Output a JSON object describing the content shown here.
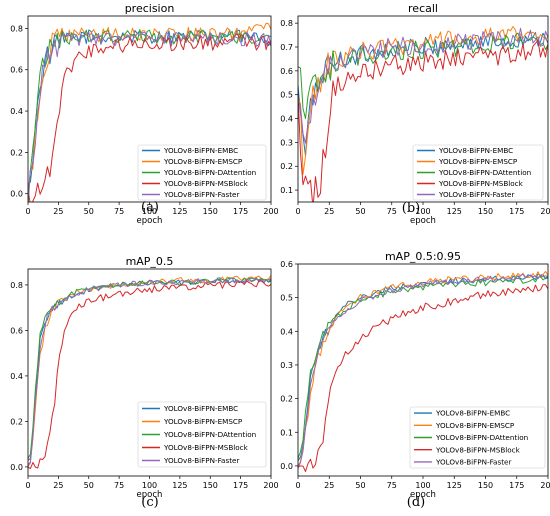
{
  "series_names": [
    "YOLOv8-BiFPN-EMBC",
    "YOLOv8-BiFPN-EMSCP",
    "YOLOv8-BiFPN-DAttention",
    "YOLOv8-BiFPN-MSBlock",
    "YOLOv8-BiFPN-Faster"
  ],
  "series_colors": [
    "#1f77b4",
    "#ff7f0e",
    "#2ca02c",
    "#d62728",
    "#9467bd"
  ],
  "chart_data": [
    {
      "type": "line",
      "title": "precision",
      "xlabel": "epoch",
      "ylabel": "",
      "caption": "(a)",
      "xlim": [
        0,
        200
      ],
      "ylim": [
        -0.04,
        0.86
      ],
      "xticks": [
        0,
        25,
        50,
        75,
        100,
        125,
        150,
        175,
        200
      ],
      "yticks": [
        0.0,
        0.2,
        0.4,
        0.6,
        0.8
      ],
      "ytick_labels": [
        "0.0",
        "0.2",
        "0.4",
        "0.6",
        "0.8"
      ],
      "legend": "lower-right",
      "grid": false,
      "series": [
        {
          "name": "YOLOv8-BiFPN-EMBC",
          "x": [
            0,
            5,
            10,
            15,
            20,
            30,
            40,
            50,
            75,
            100,
            125,
            150,
            175,
            200
          ],
          "y": [
            0.0,
            0.25,
            0.55,
            0.65,
            0.7,
            0.74,
            0.76,
            0.76,
            0.76,
            0.76,
            0.76,
            0.76,
            0.76,
            0.75
          ],
          "noise": 0.035
        },
        {
          "name": "YOLOv8-BiFPN-EMSCP",
          "x": [
            0,
            5,
            10,
            15,
            20,
            30,
            40,
            50,
            75,
            100,
            125,
            150,
            175,
            200
          ],
          "y": [
            0.0,
            0.2,
            0.5,
            0.66,
            0.72,
            0.76,
            0.77,
            0.77,
            0.77,
            0.77,
            0.77,
            0.77,
            0.77,
            0.81
          ],
          "noise": 0.035
        },
        {
          "name": "YOLOv8-BiFPN-DAttention",
          "x": [
            0,
            5,
            10,
            15,
            20,
            30,
            40,
            50,
            75,
            100,
            125,
            150,
            175,
            200
          ],
          "y": [
            0.0,
            0.3,
            0.58,
            0.66,
            0.72,
            0.75,
            0.76,
            0.76,
            0.76,
            0.76,
            0.76,
            0.76,
            0.76,
            0.74
          ],
          "noise": 0.035
        },
        {
          "name": "YOLOv8-BiFPN-MSBlock",
          "x": [
            0,
            5,
            10,
            15,
            20,
            25,
            30,
            35,
            40,
            50,
            60,
            75,
            100,
            125,
            150,
            175,
            200
          ],
          "y": [
            0.0,
            0.02,
            0.03,
            0.05,
            0.2,
            0.4,
            0.55,
            0.62,
            0.66,
            0.69,
            0.71,
            0.72,
            0.73,
            0.73,
            0.73,
            0.74,
            0.72
          ],
          "noise": 0.04
        },
        {
          "name": "YOLOv8-BiFPN-Faster",
          "x": [
            0,
            5,
            10,
            15,
            20,
            30,
            40,
            50,
            75,
            100,
            125,
            150,
            175,
            200
          ],
          "y": [
            0.0,
            0.22,
            0.52,
            0.64,
            0.71,
            0.74,
            0.75,
            0.75,
            0.75,
            0.75,
            0.75,
            0.75,
            0.75,
            0.74
          ],
          "noise": 0.035
        }
      ]
    },
    {
      "type": "line",
      "title": "recall",
      "xlabel": "epoch",
      "ylabel": "",
      "caption": "(b)",
      "xlim": [
        0,
        200
      ],
      "ylim": [
        0.05,
        0.83
      ],
      "xticks": [
        0,
        25,
        50,
        75,
        100,
        125,
        150,
        175,
        200
      ],
      "yticks": [
        0.1,
        0.2,
        0.3,
        0.4,
        0.5,
        0.6,
        0.7,
        0.8
      ],
      "ytick_labels": [
        "0.1",
        "0.2",
        "0.3",
        "0.4",
        "0.5",
        "0.6",
        "0.7",
        "0.8"
      ],
      "legend": "lower-right",
      "grid": false,
      "series": [
        {
          "name": "YOLOv8-BiFPN-EMBC",
          "x": [
            0,
            2,
            5,
            8,
            12,
            20,
            30,
            50,
            75,
            100,
            125,
            150,
            175,
            200
          ],
          "y": [
            0.5,
            0.45,
            0.2,
            0.35,
            0.5,
            0.6,
            0.64,
            0.67,
            0.69,
            0.7,
            0.71,
            0.72,
            0.73,
            0.75
          ],
          "noise": 0.04
        },
        {
          "name": "YOLOv8-BiFPN-EMSCP",
          "x": [
            0,
            2,
            5,
            8,
            12,
            20,
            30,
            50,
            75,
            100,
            125,
            150,
            175,
            200
          ],
          "y": [
            0.5,
            0.4,
            0.15,
            0.3,
            0.5,
            0.6,
            0.64,
            0.68,
            0.7,
            0.72,
            0.73,
            0.74,
            0.75,
            0.76
          ],
          "noise": 0.04
        },
        {
          "name": "YOLOv8-BiFPN-DAttention",
          "x": [
            0,
            2,
            5,
            8,
            12,
            20,
            30,
            50,
            75,
            100,
            125,
            150,
            175,
            200
          ],
          "y": [
            0.55,
            0.6,
            0.3,
            0.45,
            0.55,
            0.6,
            0.63,
            0.66,
            0.68,
            0.69,
            0.7,
            0.71,
            0.72,
            0.72
          ],
          "noise": 0.04
        },
        {
          "name": "YOLOv8-BiFPN-MSBlock",
          "x": [
            0,
            2,
            5,
            8,
            12,
            15,
            18,
            22,
            25,
            30,
            40,
            50,
            75,
            100,
            125,
            150,
            175,
            200
          ],
          "y": [
            0.5,
            0.3,
            0.1,
            0.2,
            0.08,
            0.15,
            0.1,
            0.3,
            0.45,
            0.52,
            0.58,
            0.6,
            0.62,
            0.64,
            0.65,
            0.66,
            0.67,
            0.7
          ],
          "noise": 0.045
        },
        {
          "name": "YOLOv8-BiFPN-Faster",
          "x": [
            0,
            2,
            5,
            8,
            12,
            20,
            30,
            50,
            75,
            100,
            125,
            150,
            175,
            200
          ],
          "y": [
            0.52,
            0.4,
            0.2,
            0.35,
            0.5,
            0.6,
            0.64,
            0.67,
            0.7,
            0.71,
            0.72,
            0.73,
            0.74,
            0.74
          ],
          "noise": 0.04
        }
      ]
    },
    {
      "type": "line",
      "title": "mAP_0.5",
      "xlabel": "epoch",
      "ylabel": "",
      "caption": "(c)",
      "xlim": [
        0,
        200
      ],
      "ylim": [
        -0.04,
        0.87
      ],
      "xticks": [
        0,
        25,
        50,
        75,
        100,
        125,
        150,
        175,
        200
      ],
      "yticks": [
        0.0,
        0.2,
        0.4,
        0.6,
        0.8
      ],
      "ytick_labels": [
        "0.0",
        "0.2",
        "0.4",
        "0.6",
        "0.8"
      ],
      "legend": "lower-right",
      "grid": false,
      "series": [
        {
          "name": "YOLOv8-BiFPN-EMBC",
          "x": [
            0,
            3,
            6,
            10,
            15,
            20,
            30,
            40,
            50,
            75,
            100,
            125,
            150,
            175,
            200
          ],
          "y": [
            0.02,
            0.05,
            0.3,
            0.55,
            0.65,
            0.7,
            0.74,
            0.76,
            0.78,
            0.8,
            0.81,
            0.81,
            0.82,
            0.82,
            0.82
          ],
          "noise": 0.012
        },
        {
          "name": "YOLOv8-BiFPN-EMSCP",
          "x": [
            0,
            3,
            6,
            10,
            15,
            20,
            30,
            40,
            50,
            75,
            100,
            125,
            150,
            175,
            200
          ],
          "y": [
            0.02,
            0.05,
            0.25,
            0.5,
            0.63,
            0.69,
            0.74,
            0.77,
            0.78,
            0.8,
            0.81,
            0.82,
            0.82,
            0.83,
            0.83
          ],
          "noise": 0.012
        },
        {
          "name": "YOLOv8-BiFPN-DAttention",
          "x": [
            0,
            3,
            6,
            10,
            15,
            20,
            30,
            40,
            50,
            75,
            100,
            125,
            150,
            175,
            200
          ],
          "y": [
            0.02,
            0.06,
            0.35,
            0.58,
            0.66,
            0.71,
            0.75,
            0.77,
            0.78,
            0.8,
            0.81,
            0.81,
            0.82,
            0.82,
            0.82
          ],
          "noise": 0.012
        },
        {
          "name": "YOLOv8-BiFPN-MSBlock",
          "x": [
            0,
            5,
            10,
            15,
            18,
            22,
            25,
            30,
            35,
            40,
            50,
            75,
            100,
            125,
            150,
            175,
            200
          ],
          "y": [
            0.0,
            0.0,
            0.02,
            0.05,
            0.15,
            0.3,
            0.45,
            0.6,
            0.66,
            0.7,
            0.73,
            0.76,
            0.78,
            0.79,
            0.8,
            0.8,
            0.81
          ],
          "noise": 0.015
        },
        {
          "name": "YOLOv8-BiFPN-Faster",
          "x": [
            0,
            3,
            6,
            10,
            15,
            20,
            30,
            40,
            50,
            75,
            100,
            125,
            150,
            175,
            200
          ],
          "y": [
            0.02,
            0.05,
            0.28,
            0.52,
            0.64,
            0.7,
            0.74,
            0.76,
            0.78,
            0.8,
            0.81,
            0.81,
            0.82,
            0.82,
            0.82
          ],
          "noise": 0.012
        }
      ]
    },
    {
      "type": "line",
      "title": "mAP_0.5:0.95",
      "xlabel": "epoch",
      "ylabel": "",
      "caption": "(d)",
      "xlim": [
        0,
        200
      ],
      "ylim": [
        -0.03,
        0.6
      ],
      "xticks": [
        0,
        25,
        50,
        75,
        100,
        125,
        150,
        175,
        200
      ],
      "yticks": [
        0.0,
        0.1,
        0.2,
        0.3,
        0.4,
        0.5,
        0.6
      ],
      "ytick_labels": [
        "0.0",
        "0.1",
        "0.2",
        "0.3",
        "0.4",
        "0.5",
        "0.6"
      ],
      "legend": "lower-right",
      "grid": false,
      "series": [
        {
          "name": "YOLOv8-BiFPN-EMBC",
          "x": [
            0,
            3,
            6,
            10,
            15,
            20,
            30,
            40,
            50,
            75,
            100,
            125,
            150,
            175,
            200
          ],
          "y": [
            0.01,
            0.03,
            0.12,
            0.25,
            0.33,
            0.38,
            0.44,
            0.48,
            0.5,
            0.53,
            0.54,
            0.55,
            0.555,
            0.56,
            0.565
          ],
          "noise": 0.01
        },
        {
          "name": "YOLOv8-BiFPN-EMSCP",
          "x": [
            0,
            3,
            6,
            10,
            15,
            20,
            30,
            40,
            50,
            75,
            100,
            125,
            150,
            175,
            200
          ],
          "y": [
            0.01,
            0.03,
            0.1,
            0.22,
            0.31,
            0.37,
            0.44,
            0.48,
            0.5,
            0.53,
            0.545,
            0.555,
            0.56,
            0.565,
            0.57
          ],
          "noise": 0.01
        },
        {
          "name": "YOLOv8-BiFPN-DAttention",
          "x": [
            0,
            3,
            6,
            10,
            15,
            20,
            30,
            40,
            50,
            75,
            100,
            125,
            150,
            175,
            200
          ],
          "y": [
            0.01,
            0.04,
            0.15,
            0.27,
            0.34,
            0.39,
            0.44,
            0.47,
            0.49,
            0.52,
            0.53,
            0.54,
            0.545,
            0.55,
            0.555
          ],
          "noise": 0.01
        },
        {
          "name": "YOLOv8-BiFPN-MSBlock",
          "x": [
            0,
            5,
            10,
            15,
            18,
            22,
            25,
            30,
            35,
            40,
            50,
            75,
            100,
            125,
            150,
            175,
            200
          ],
          "y": [
            0.0,
            0.0,
            0.01,
            0.02,
            0.05,
            0.13,
            0.2,
            0.27,
            0.31,
            0.34,
            0.38,
            0.44,
            0.47,
            0.49,
            0.51,
            0.52,
            0.53
          ],
          "noise": 0.012
        },
        {
          "name": "YOLOv8-BiFPN-Faster",
          "x": [
            0,
            3,
            6,
            10,
            15,
            20,
            30,
            40,
            50,
            75,
            100,
            125,
            150,
            175,
            200
          ],
          "y": [
            0.01,
            0.03,
            0.11,
            0.23,
            0.32,
            0.37,
            0.43,
            0.47,
            0.49,
            0.52,
            0.54,
            0.55,
            0.555,
            0.56,
            0.56
          ],
          "noise": 0.01
        }
      ]
    }
  ]
}
